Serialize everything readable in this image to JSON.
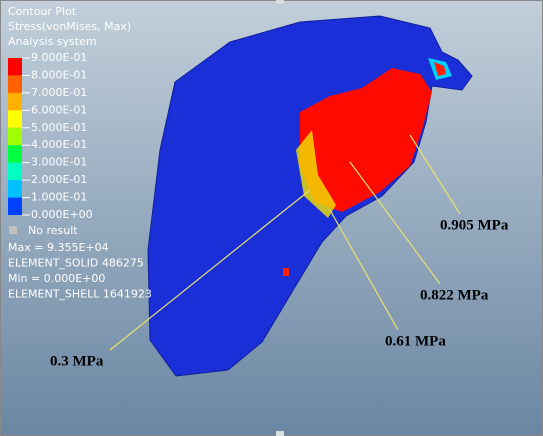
{
  "legend": {
    "title_lines": [
      "Contour Plot",
      "Stress(vonMises, Max)",
      "Analysis system"
    ],
    "labels": [
      "9.000E-01",
      "8.000E-01",
      "7.000E-01",
      "6.000E-01",
      "5.000E-01",
      "4.000E-01",
      "3.000E-01",
      "2.000E-01",
      "1.000E-01",
      "0.000E+00"
    ],
    "colors": [
      "#ff0000",
      "#ff6000",
      "#ffb000",
      "#ffff00",
      "#a0ff00",
      "#00ff40",
      "#00ffc0",
      "#00c0ff",
      "#0040ff"
    ],
    "no_result": "No result"
  },
  "info": [
    "Max = 9.355E+04",
    "ELEMENT_SOLID 486275",
    "Min = 0.000E+00",
    "ELEMENT_SHELL 1641923"
  ],
  "annotations": [
    "0.905 MPa",
    "0.822 MPa",
    "0.61 MPa",
    "0.3 MPa"
  ]
}
